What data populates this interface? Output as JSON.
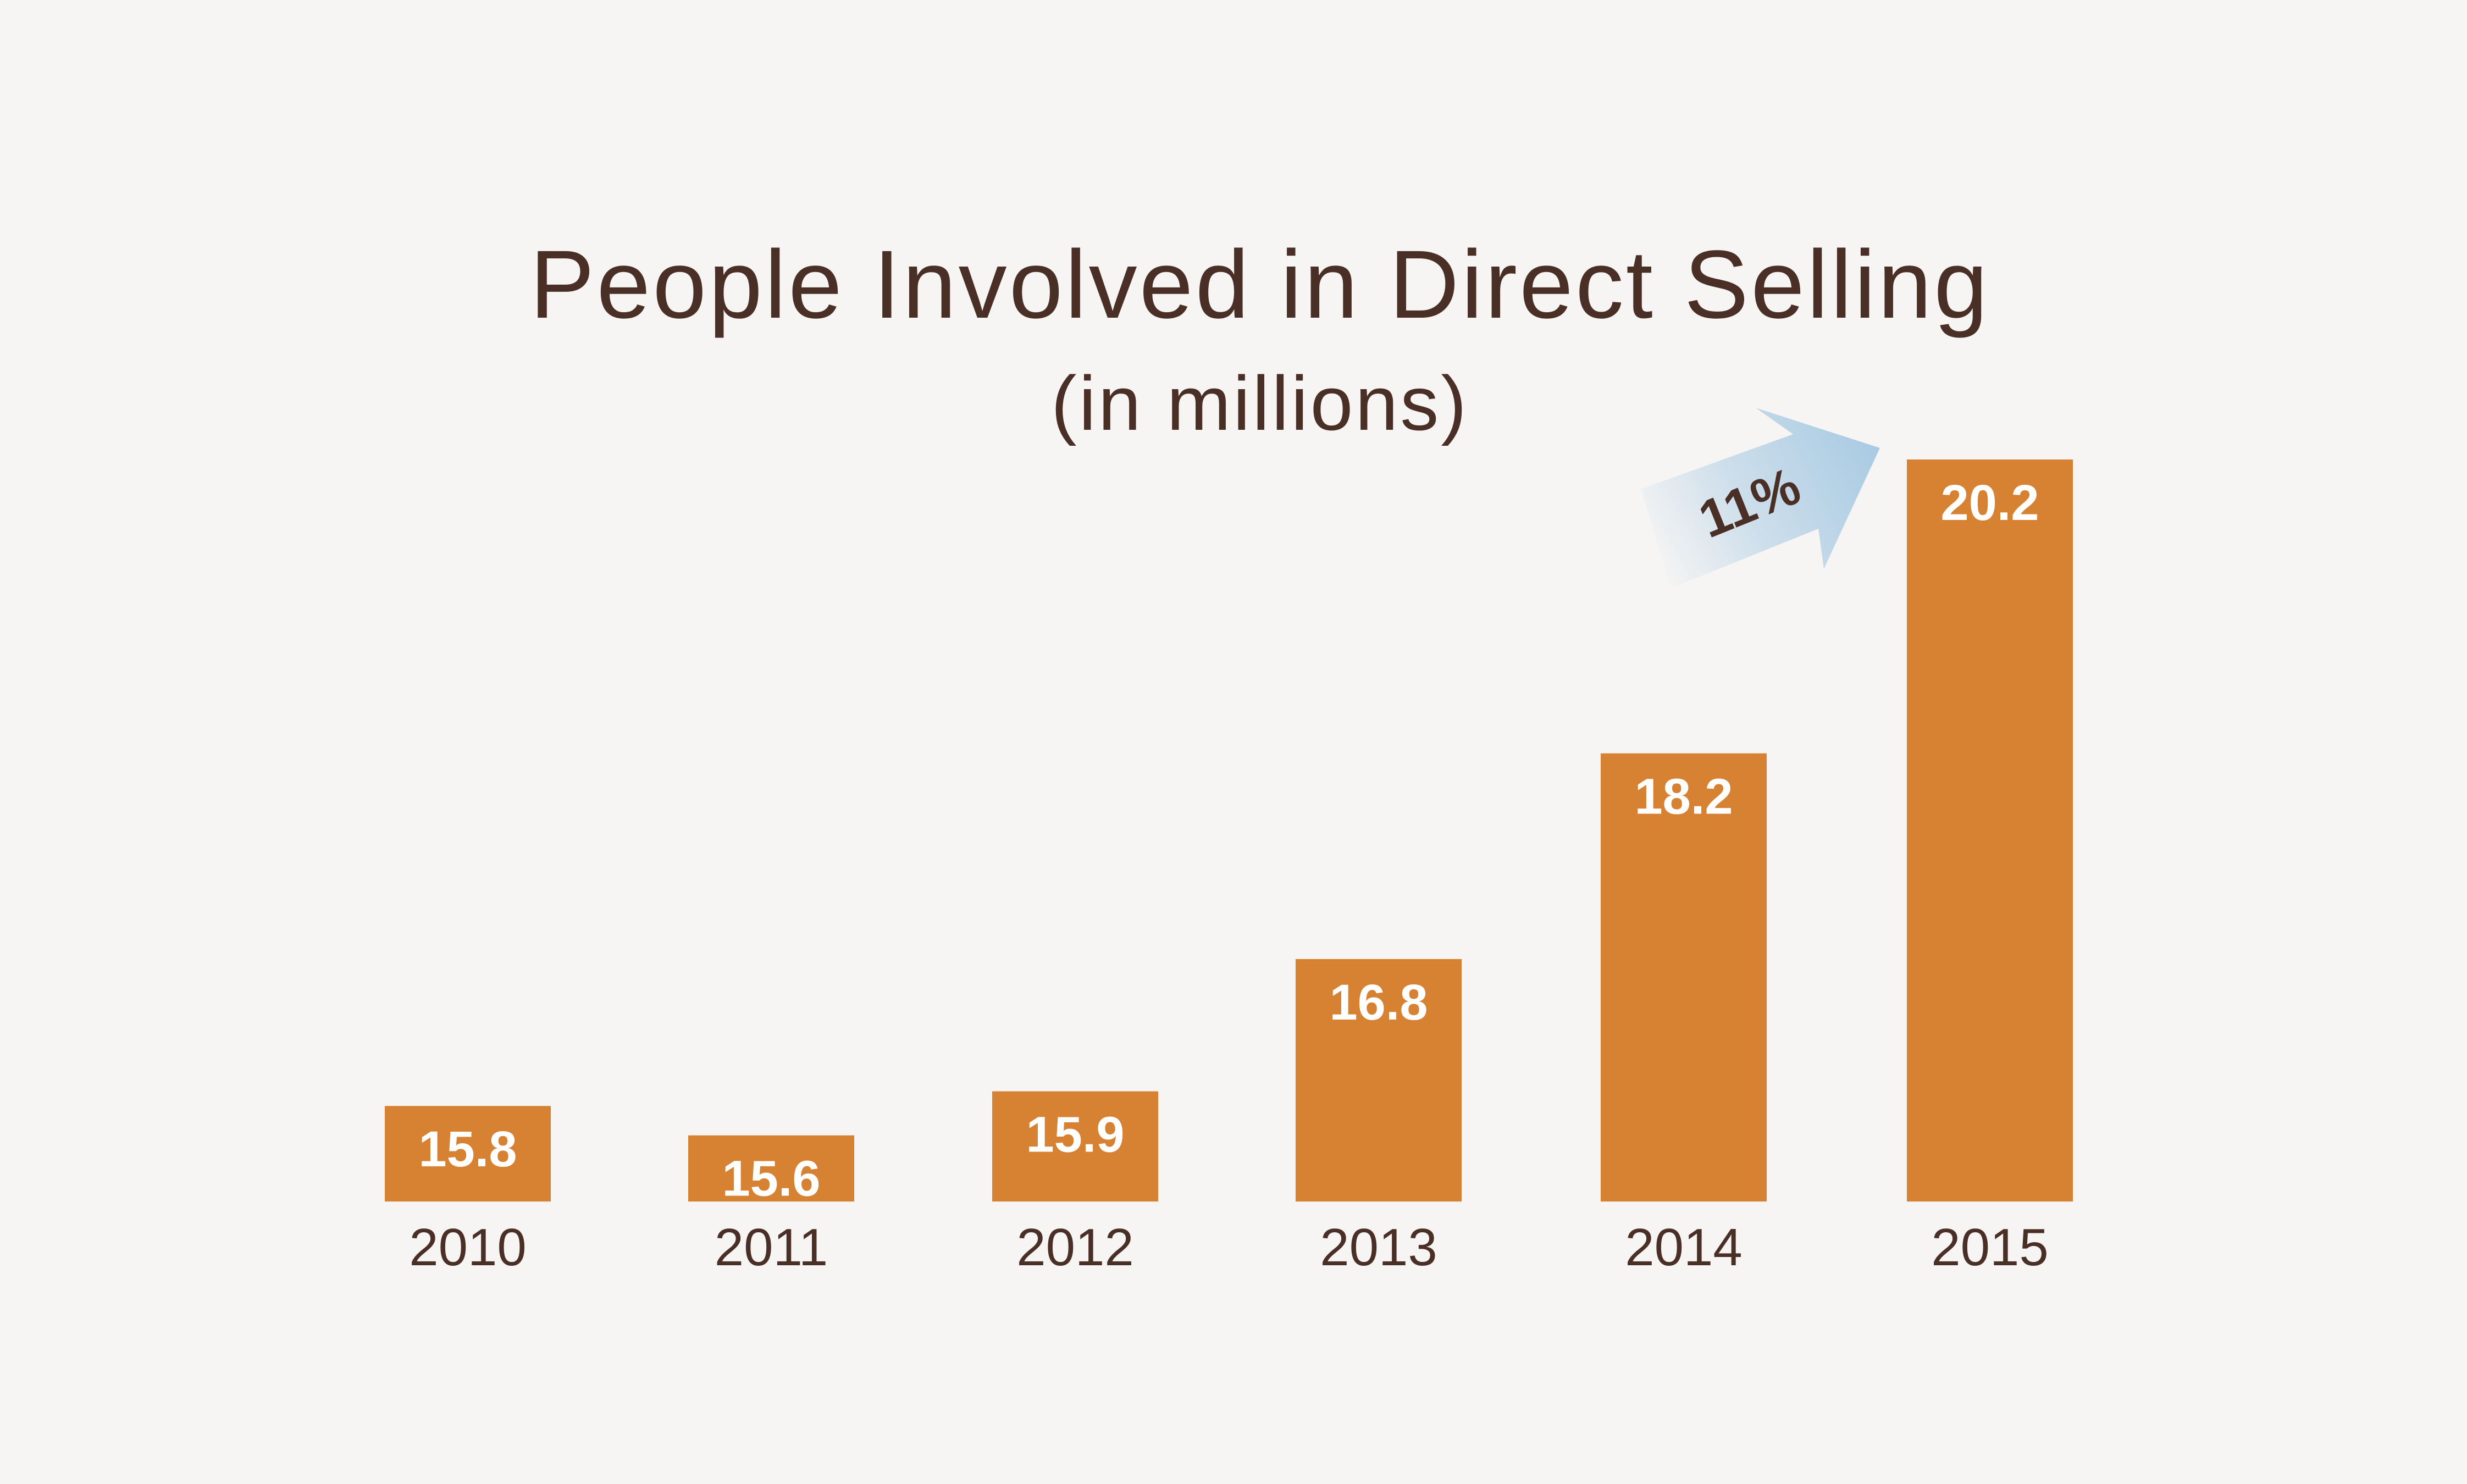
{
  "chart_data": {
    "type": "bar",
    "title": "People Involved in Direct Selling",
    "subtitle": "(in millions)",
    "categories": [
      "2010",
      "2011",
      "2012",
      "2013",
      "2014",
      "2015"
    ],
    "values": [
      15.8,
      15.6,
      15.9,
      16.8,
      18.2,
      20.2
    ],
    "value_labels": [
      "15.8",
      "15.6",
      "15.9",
      "16.8",
      "18.2",
      "20.2"
    ],
    "ylim": [
      15.15,
      20.2
    ],
    "grid": false,
    "legend": "none",
    "annotation": {
      "text": "11%",
      "from_category": "2014",
      "to_category": "2015"
    },
    "colors": {
      "bar": "#d78233",
      "value_label": "#ffffff",
      "text": "#4a2f26",
      "background": "#f7f5f4",
      "arrow": "#a9cbe3"
    }
  }
}
